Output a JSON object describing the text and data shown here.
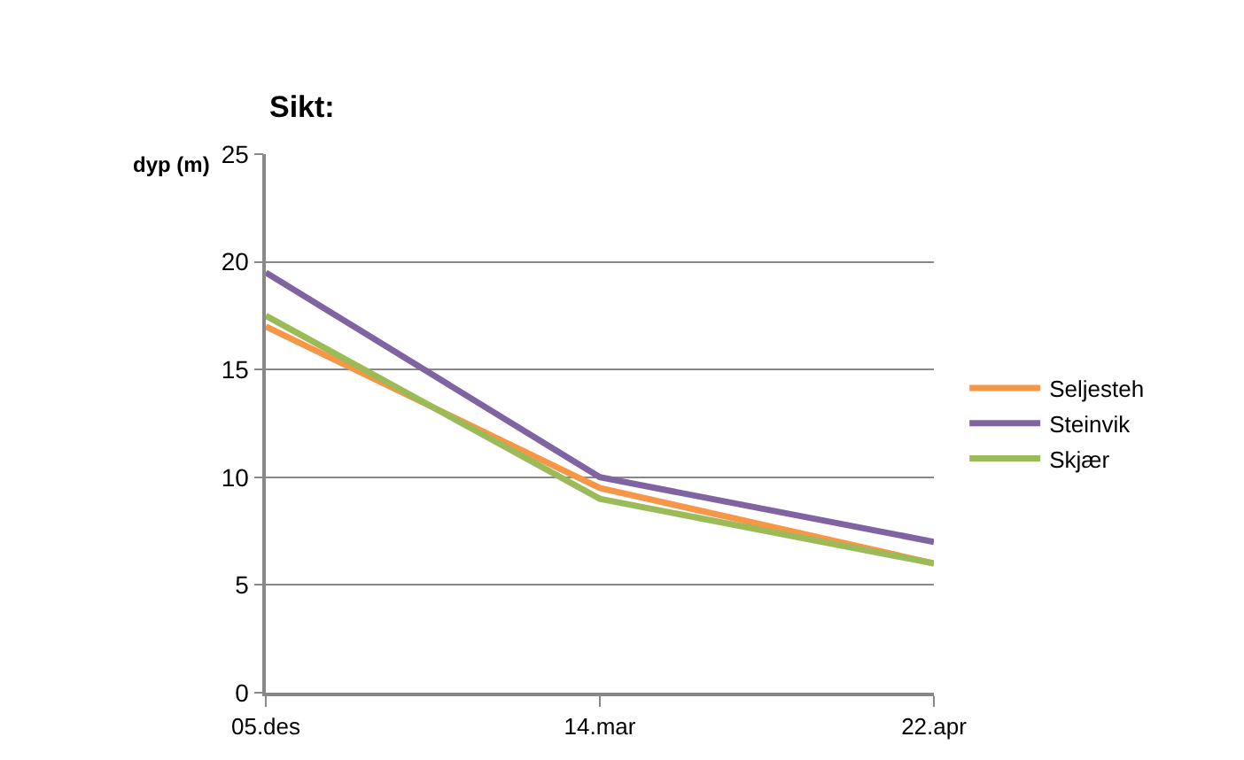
{
  "chart_data": {
    "type": "line",
    "title": "Sikt:",
    "ylabel": "dyp (m)",
    "categories": [
      "05.des",
      "14.mar",
      "22.apr"
    ],
    "series": [
      {
        "name": "Seljesteh",
        "color": "#f79646",
        "values": [
          17,
          9.5,
          6
        ]
      },
      {
        "name": "Steinvik",
        "color": "#8064a2",
        "values": [
          19.5,
          10,
          7
        ]
      },
      {
        "name": "Skjær",
        "color": "#9bbb59",
        "values": [
          17.5,
          9,
          6
        ]
      }
    ],
    "ylim": [
      0,
      25
    ],
    "yticks": [
      0,
      5,
      10,
      15,
      20,
      25
    ],
    "grid": "y",
    "legend": "right",
    "marker": "none",
    "line_style": "solid"
  }
}
